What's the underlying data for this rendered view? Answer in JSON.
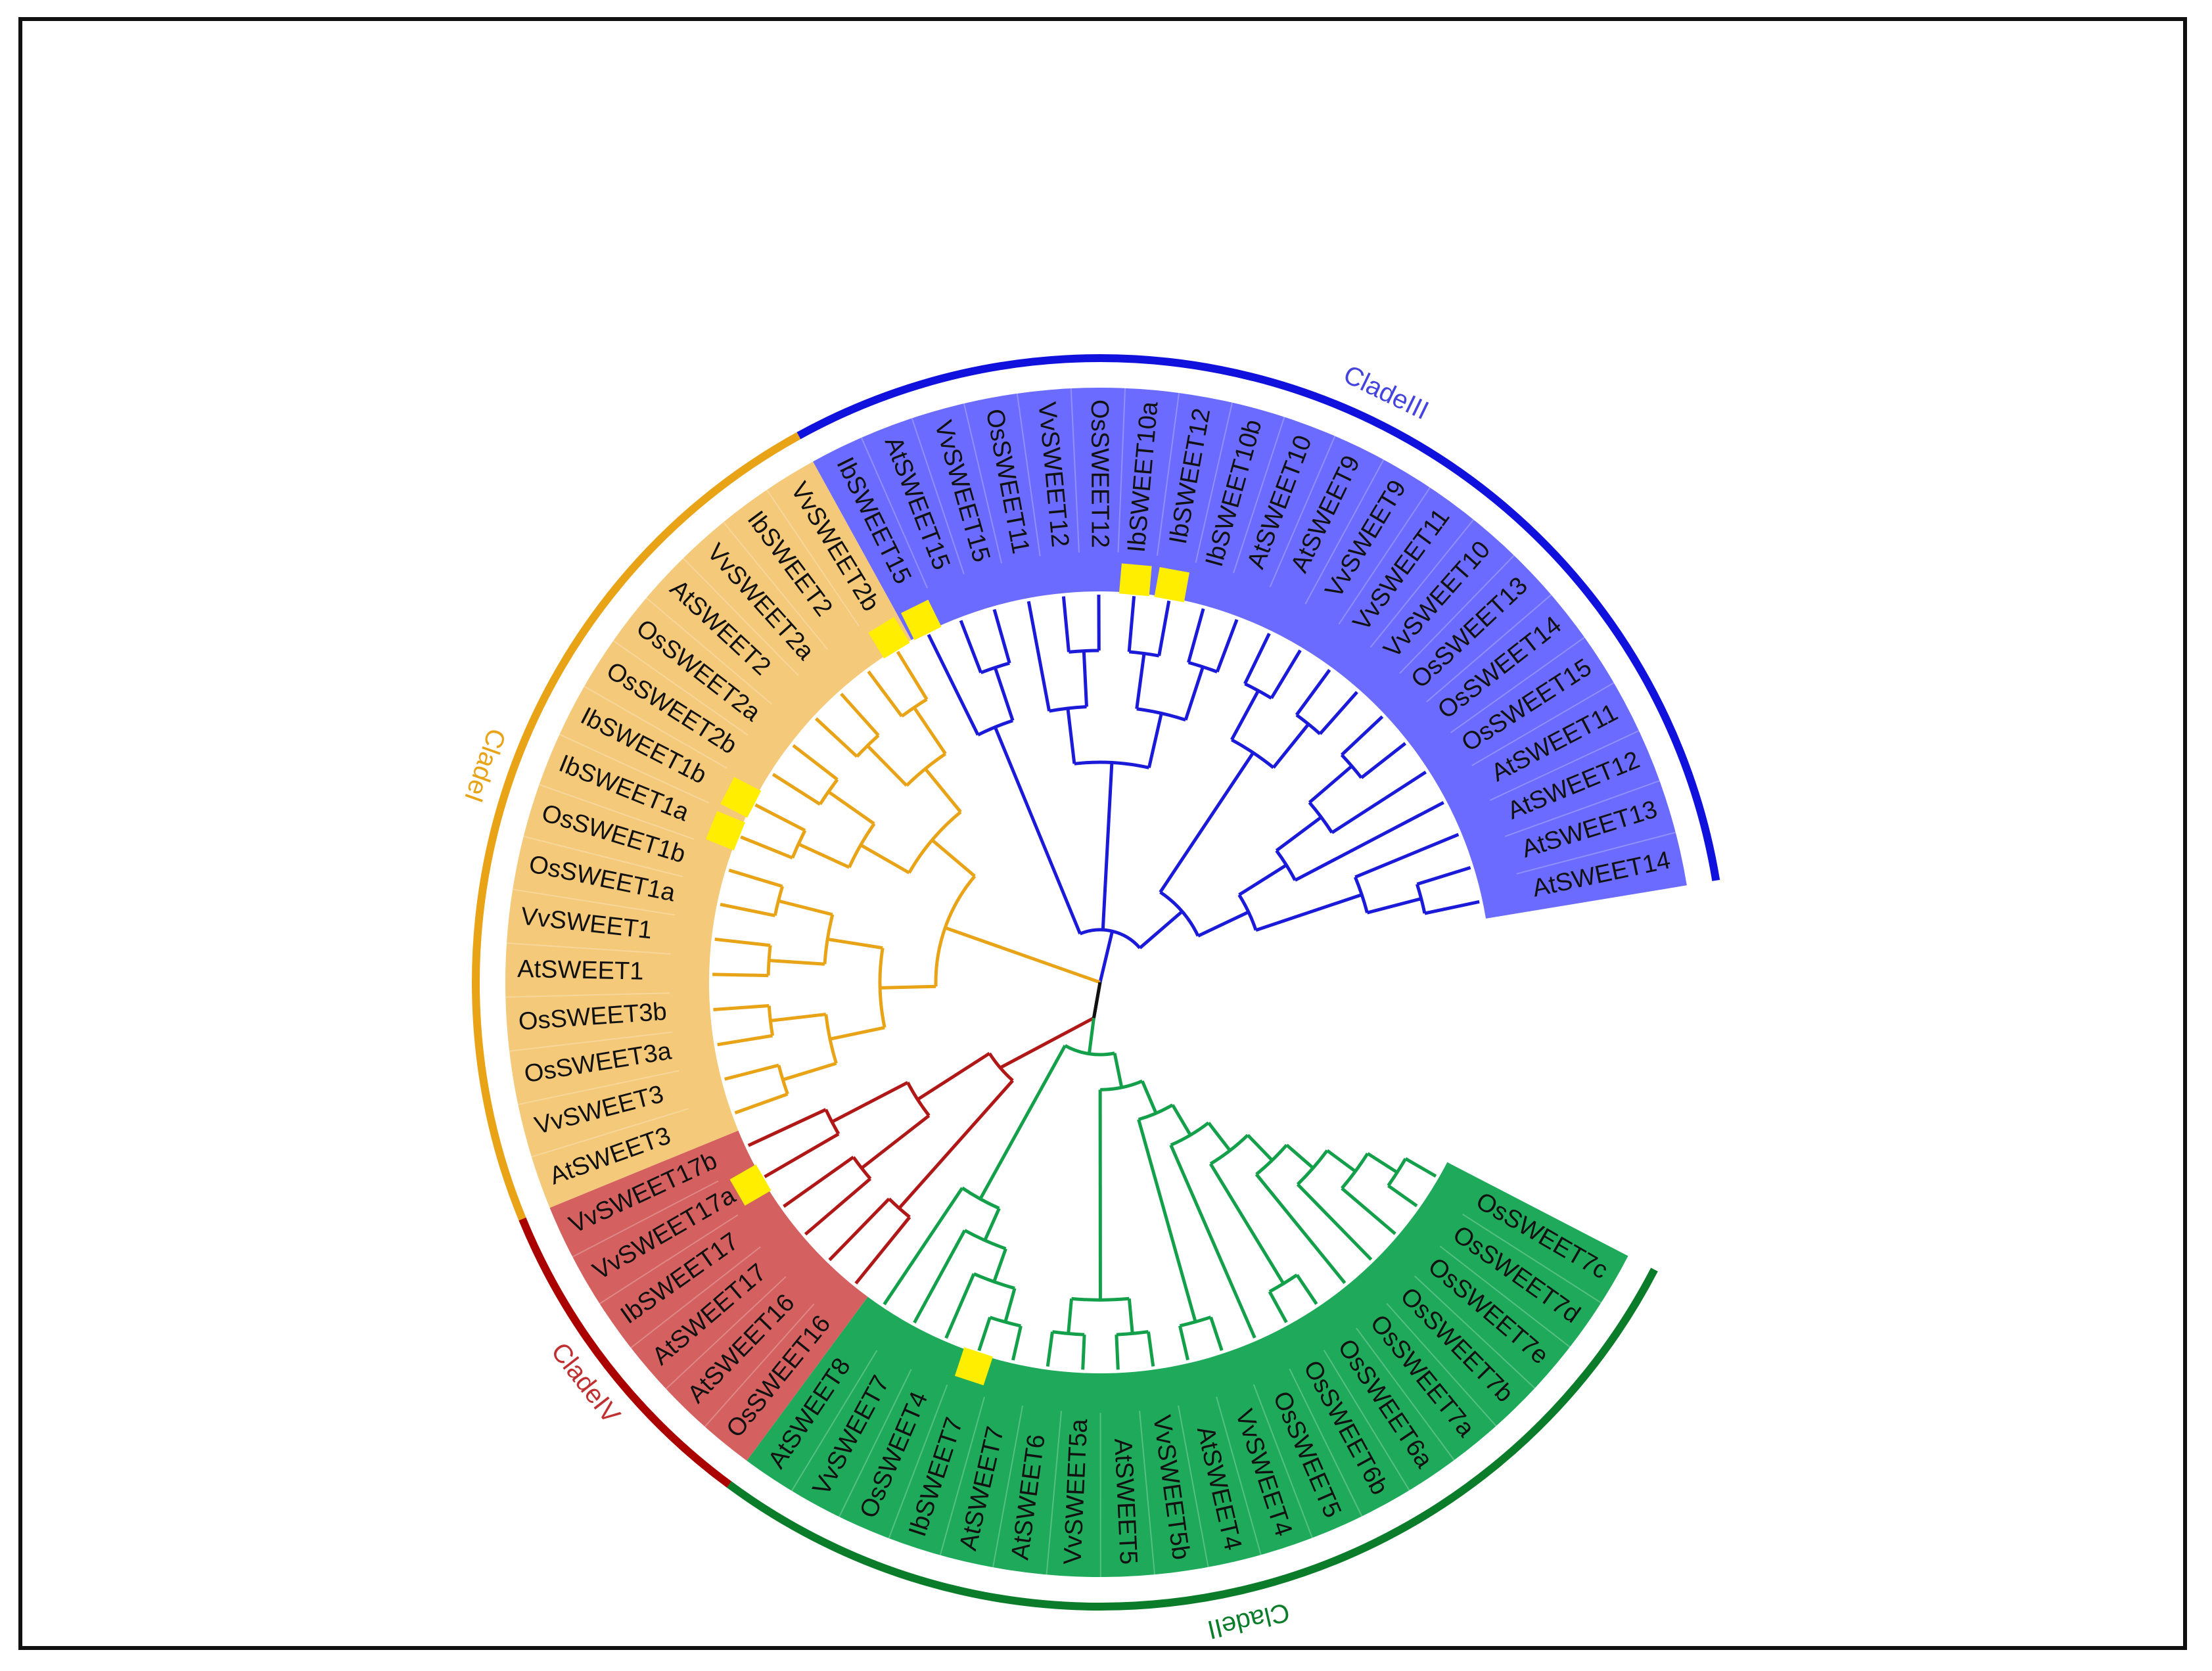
{
  "figure": {
    "clades": [
      {
        "id": "I",
        "name": "CladeI",
        "ring_color": "#e8a317",
        "fill_color": "#f5c97a",
        "branch_color": "#e8a317",
        "label_color": "#e8a317"
      },
      {
        "id": "II",
        "name": "CladeII",
        "ring_color": "#0b7d2a",
        "fill_color": "#1eaa5a",
        "branch_color": "#14a04a",
        "label_color": "#0b7d2a"
      },
      {
        "id": "III",
        "name": "CladeIII",
        "ring_color": "#1111dd",
        "fill_color": "#6b6bff",
        "branch_color": "#1a1ad8",
        "label_color": "#4444dd"
      },
      {
        "id": "IV",
        "name": "CladeIV",
        "ring_color": "#aa0000",
        "fill_color": "#d46060",
        "branch_color": "#b01818",
        "label_color": "#c03030"
      }
    ],
    "leaves": [
      {
        "name": "AtSWEET14",
        "clade": "III",
        "marker": false
      },
      {
        "name": "AtSWEET13",
        "clade": "III",
        "marker": false
      },
      {
        "name": "AtSWEET12",
        "clade": "III",
        "marker": false
      },
      {
        "name": "AtSWEET11",
        "clade": "III",
        "marker": false
      },
      {
        "name": "OsSWEET15",
        "clade": "III",
        "marker": false
      },
      {
        "name": "OsSWEET14",
        "clade": "III",
        "marker": false
      },
      {
        "name": "OsSWEET13",
        "clade": "III",
        "marker": false
      },
      {
        "name": "VvSWEET10",
        "clade": "III",
        "marker": false
      },
      {
        "name": "VvSWEET11",
        "clade": "III",
        "marker": false
      },
      {
        "name": "VvSWEET9",
        "clade": "III",
        "marker": false
      },
      {
        "name": "AtSWEET9",
        "clade": "III",
        "marker": false
      },
      {
        "name": "AtSWEET10",
        "clade": "III",
        "marker": false
      },
      {
        "name": "IbSWEET10b",
        "clade": "III",
        "marker": false
      },
      {
        "name": "IbSWEET12",
        "clade": "III",
        "marker": true
      },
      {
        "name": "IbSWEET10a",
        "clade": "III",
        "marker": true
      },
      {
        "name": "OsSWEET12",
        "clade": "III",
        "marker": false
      },
      {
        "name": "VvSWEET12",
        "clade": "III",
        "marker": false
      },
      {
        "name": "OsSWEET11",
        "clade": "III",
        "marker": false
      },
      {
        "name": "VvSWEET15",
        "clade": "III",
        "marker": false
      },
      {
        "name": "AtSWEET15",
        "clade": "III",
        "marker": false
      },
      {
        "name": "IbSWEET15",
        "clade": "III",
        "marker": true
      },
      {
        "name": "VvSWEET2b",
        "clade": "I",
        "marker": true
      },
      {
        "name": "IbSWEET2",
        "clade": "I",
        "marker": false
      },
      {
        "name": "VvSWEET2a",
        "clade": "I",
        "marker": false
      },
      {
        "name": "AtSWEET2",
        "clade": "I",
        "marker": false
      },
      {
        "name": "OsSWEET2a",
        "clade": "I",
        "marker": false
      },
      {
        "name": "OsSWEET2b",
        "clade": "I",
        "marker": false
      },
      {
        "name": "IbSWEET1b",
        "clade": "I",
        "marker": true
      },
      {
        "name": "IbSWEET1a",
        "clade": "I",
        "marker": true
      },
      {
        "name": "OsSWEET1b",
        "clade": "I",
        "marker": false
      },
      {
        "name": "OsSWEET1a",
        "clade": "I",
        "marker": false
      },
      {
        "name": "VvSWEET1",
        "clade": "I",
        "marker": false
      },
      {
        "name": "AtSWEET1",
        "clade": "I",
        "marker": false
      },
      {
        "name": "OsSWEET3b",
        "clade": "I",
        "marker": false
      },
      {
        "name": "OsSWEET3a",
        "clade": "I",
        "marker": false
      },
      {
        "name": "VvSWEET3",
        "clade": "I",
        "marker": false
      },
      {
        "name": "AtSWEET3",
        "clade": "I",
        "marker": false
      },
      {
        "name": "VvSWEET17b",
        "clade": "IV",
        "marker": false
      },
      {
        "name": "VvSWEET17a",
        "clade": "IV",
        "marker": true
      },
      {
        "name": "IbSWEET17",
        "clade": "IV",
        "marker": false
      },
      {
        "name": "AtSWEET17",
        "clade": "IV",
        "marker": false
      },
      {
        "name": "AtSWEET16",
        "clade": "IV",
        "marker": false
      },
      {
        "name": "OsSWEET16",
        "clade": "IV",
        "marker": false
      },
      {
        "name": "AtSWEET8",
        "clade": "II",
        "marker": false
      },
      {
        "name": "VvSWEET7",
        "clade": "II",
        "marker": false
      },
      {
        "name": "OsSWEET4",
        "clade": "II",
        "marker": false
      },
      {
        "name": "IbSWEET7",
        "clade": "II",
        "marker": true
      },
      {
        "name": "AtSWEET7",
        "clade": "II",
        "marker": false
      },
      {
        "name": "AtSWEET6",
        "clade": "II",
        "marker": false
      },
      {
        "name": "VvSWEET5a",
        "clade": "II",
        "marker": false
      },
      {
        "name": "AtSWEET5",
        "clade": "II",
        "marker": false
      },
      {
        "name": "VvSWEET5b",
        "clade": "II",
        "marker": false
      },
      {
        "name": "AtSWEET4",
        "clade": "II",
        "marker": false
      },
      {
        "name": "VvSWEET4",
        "clade": "II",
        "marker": false
      },
      {
        "name": "OsSWEET5",
        "clade": "II",
        "marker": false
      },
      {
        "name": "OsSWEET6b",
        "clade": "II",
        "marker": false
      },
      {
        "name": "OsSWEET6a",
        "clade": "II",
        "marker": false
      },
      {
        "name": "OsSWEET7a",
        "clade": "II",
        "marker": false
      },
      {
        "name": "OsSWEET7b",
        "clade": "II",
        "marker": false
      },
      {
        "name": "OsSWEET7e",
        "clade": "II",
        "marker": false
      },
      {
        "name": "OsSWEET7d",
        "clade": "II",
        "marker": false
      },
      {
        "name": "OsSWEET7c",
        "clade": "II",
        "marker": false
      }
    ],
    "marker_color": "#ffee00",
    "root_color": "#111111"
  }
}
